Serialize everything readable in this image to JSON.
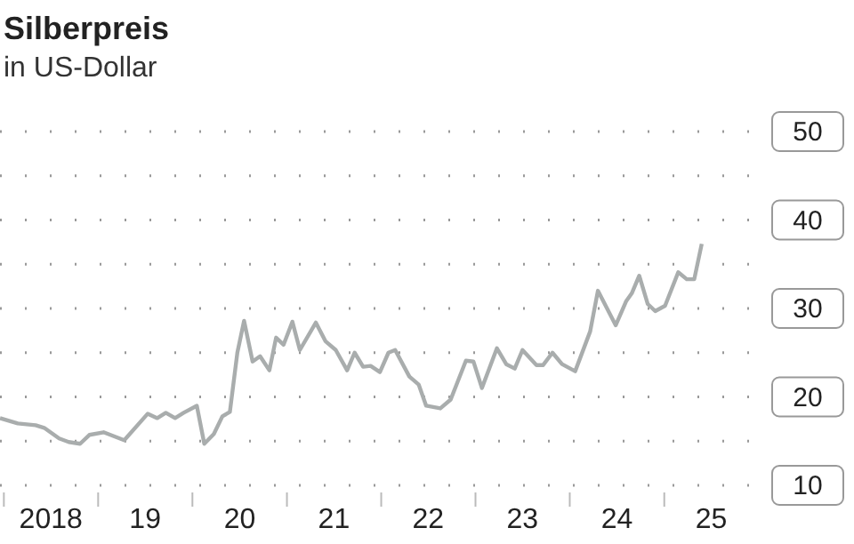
{
  "chart_data": {
    "type": "line",
    "title": "Silberpreis",
    "subtitle": "in US-Dollar",
    "x": [
      "2017-12-17",
      "2018-02-24",
      "2018-05-04",
      "2018-06-06",
      "2018-08-03",
      "2018-09-09",
      "2018-10-23",
      "2018-11-28",
      "2019-01-22",
      "2019-04-12",
      "2019-07-12",
      "2019-08-18",
      "2019-09-20",
      "2019-10-26",
      "2019-11-28",
      "2020-01-18",
      "2020-02-16",
      "2020-03-24",
      "2020-04-26",
      "2020-05-25",
      "2020-06-23",
      "2020-07-19",
      "2020-08-21",
      "2020-09-19",
      "2020-10-25",
      "2020-11-20",
      "2020-12-19",
      "2021-01-22",
      "2021-02-20",
      "2021-04-23",
      "2021-05-30",
      "2021-07-09",
      "2021-08-22",
      "2021-09-20",
      "2021-10-23",
      "2021-11-21",
      "2021-12-27",
      "2022-01-29",
      "2022-02-24",
      "2022-04-20",
      "2022-05-26",
      "2022-06-24",
      "2022-08-18",
      "2022-09-27",
      "2022-11-25",
      "2022-12-24",
      "2023-01-26",
      "2023-03-25",
      "2023-04-30",
      "2023-06-02",
      "2023-07-02",
      "2023-08-25",
      "2023-09-20",
      "2023-10-26",
      "2023-12-02",
      "2024-01-22",
      "2024-03-20",
      "2024-04-19",
      "2024-06-27",
      "2024-08-06",
      "2024-08-28",
      "2024-09-26",
      "2024-10-29",
      "2024-11-27",
      "2025-01-04",
      "2025-02-24",
      "2025-03-29",
      "2025-04-27",
      "2025-05-26"
    ],
    "series": [
      {
        "color": "#a9adad",
        "values": [
          17.6,
          17.0,
          16.8,
          16.5,
          15.3,
          14.9,
          14.7,
          15.7,
          16.0,
          15.1,
          18.1,
          17.6,
          18.2,
          17.6,
          18.2,
          19.0,
          14.7,
          15.8,
          17.8,
          18.3,
          25.0,
          28.6,
          24.0,
          24.6,
          23.0,
          26.7,
          25.9,
          28.5,
          25.3,
          28.4,
          26.3,
          25.3,
          23.0,
          25.0,
          23.4,
          23.5,
          22.8,
          25.0,
          25.3,
          22.3,
          21.4,
          19.0,
          18.7,
          19.7,
          24.1,
          24.0,
          21.0,
          25.5,
          23.7,
          23.2,
          25.3,
          23.6,
          23.6,
          25.0,
          23.7,
          22.9,
          27.4,
          32.0,
          28.1,
          30.8,
          31.7,
          33.7,
          30.5,
          29.7,
          30.3,
          34.1,
          33.3,
          33.3,
          37.3
        ]
      }
    ],
    "xlim": [
      "2017-12-17",
      "2025-12-02"
    ],
    "xticks": [
      {
        "value": "2018-01-01",
        "label": null
      },
      {
        "value": "2018-07-02",
        "label": "2018"
      },
      {
        "value": "2019-01-01",
        "label": null
      },
      {
        "value": "2019-07-02",
        "label": "19"
      },
      {
        "value": "2020-01-01",
        "label": null
      },
      {
        "value": "2020-07-02",
        "label": "20"
      },
      {
        "value": "2021-01-01",
        "label": null
      },
      {
        "value": "2021-07-02",
        "label": "21"
      },
      {
        "value": "2022-01-01",
        "label": null
      },
      {
        "value": "2022-07-02",
        "label": "22"
      },
      {
        "value": "2023-01-01",
        "label": null
      },
      {
        "value": "2023-07-02",
        "label": "23"
      },
      {
        "value": "2024-01-01",
        "label": null
      },
      {
        "value": "2024-07-02",
        "label": "24"
      },
      {
        "value": "2025-01-01",
        "label": null
      },
      {
        "value": "2025-07-02",
        "label": "25"
      }
    ],
    "ylim": [
      10,
      50
    ],
    "yticks": [
      10,
      {
        "value": 15,
        "label": null
      },
      20,
      {
        "value": 25,
        "label": null
      },
      30,
      {
        "value": 35,
        "label": null
      },
      40,
      {
        "value": 45,
        "label": null
      },
      50
    ],
    "grid": "y",
    "marker": "none",
    "line_style": "solid",
    "legend": false
  }
}
